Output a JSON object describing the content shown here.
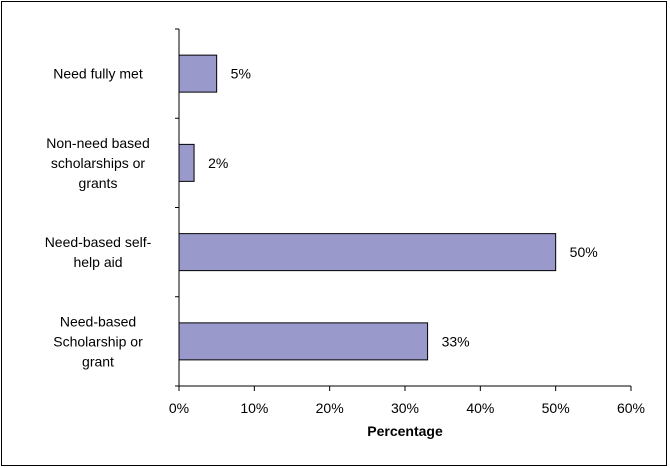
{
  "chart_data": {
    "type": "bar",
    "orientation": "horizontal",
    "title": "",
    "xlabel": "Percentage",
    "ylabel": "",
    "categories": [
      "Need fully met",
      "Non-need based scholarships or grants",
      "Need-based self-help aid",
      "Need-based Scholarship or grant"
    ],
    "category_label_lines": [
      [
        "Need fully met"
      ],
      [
        "Non-need based",
        "scholarships or",
        "grants"
      ],
      [
        "Need-based self-",
        "help aid"
      ],
      [
        "Need-based",
        "Scholarship or",
        "grant"
      ]
    ],
    "values": [
      5,
      2,
      50,
      33
    ],
    "value_labels": [
      "5%",
      "2%",
      "50%",
      "33%"
    ],
    "xlim": [
      0,
      60
    ],
    "x_ticks": [
      0,
      10,
      20,
      30,
      40,
      50,
      60
    ],
    "x_tick_labels": [
      "0%",
      "10%",
      "20%",
      "30%",
      "40%",
      "50%",
      "60%"
    ],
    "grid": false,
    "legend": "none",
    "bar_color": "#9999cc",
    "bar_edge_color": "#000000"
  }
}
